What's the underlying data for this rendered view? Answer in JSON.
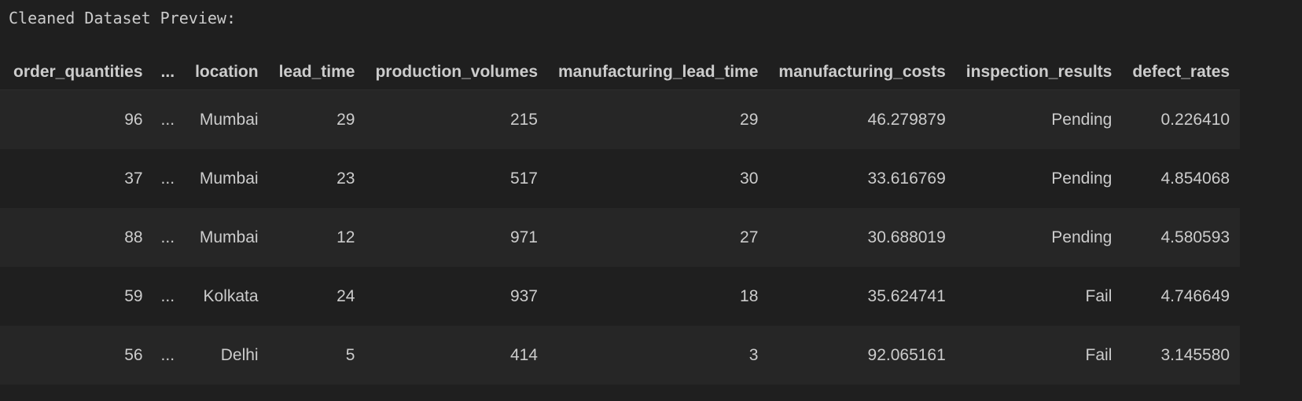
{
  "output": {
    "heading": "Cleaned Dataset Preview:"
  },
  "table": {
    "columns": [
      "order_quantities",
      "...",
      "location",
      "lead_time",
      "production_volumes",
      "manufacturing_lead_time",
      "manufacturing_costs",
      "inspection_results",
      "defect_rates"
    ],
    "rows": [
      [
        "96",
        "...",
        "Mumbai",
        "29",
        "215",
        "29",
        "46.279879",
        "Pending",
        "0.226410"
      ],
      [
        "37",
        "...",
        "Mumbai",
        "23",
        "517",
        "30",
        "33.616769",
        "Pending",
        "4.854068"
      ],
      [
        "88",
        "...",
        "Mumbai",
        "12",
        "971",
        "27",
        "30.688019",
        "Pending",
        "4.580593"
      ],
      [
        "59",
        "...",
        "Kolkata",
        "24",
        "937",
        "18",
        "35.624741",
        "Fail",
        "4.746649"
      ],
      [
        "56",
        "...",
        "Delhi",
        "5",
        "414",
        "3",
        "92.065161",
        "Fail",
        "3.145580"
      ]
    ]
  },
  "colors": {
    "background": "#1f1f1f",
    "row_stripe": "#262626",
    "text": "#cccccc"
  }
}
